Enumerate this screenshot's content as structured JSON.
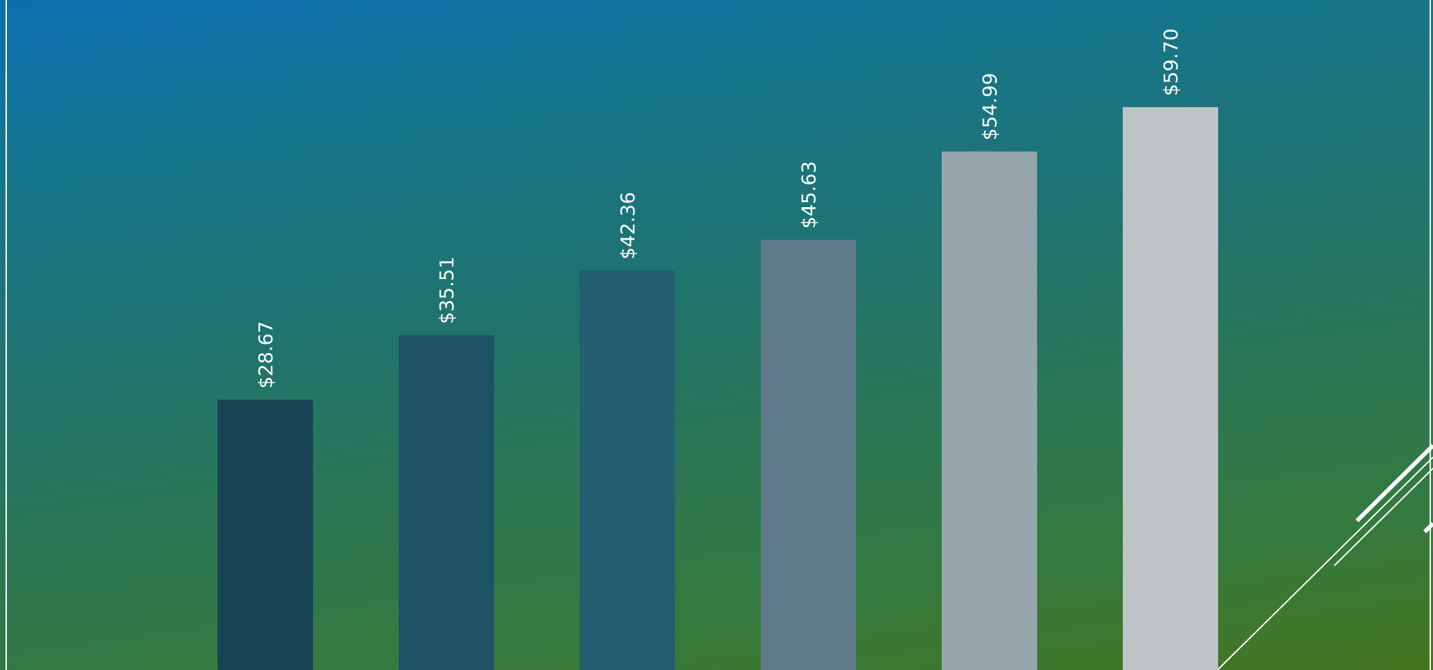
{
  "chart_data": {
    "type": "bar",
    "title": "",
    "xlabel": "",
    "ylabel": "",
    "categories": [
      "",
      "",
      "",
      "",
      "",
      ""
    ],
    "values": [
      28.67,
      35.51,
      42.36,
      45.63,
      54.99,
      59.7
    ],
    "labels": [
      "$28.67",
      "$35.51",
      "$42.36",
      "$45.63",
      "$54.99",
      "$59.70"
    ],
    "colors": [
      "#184354",
      "#1d5164",
      "#235d70",
      "#5f7b89",
      "#96a6ac",
      "#bec4c6"
    ],
    "ylim": [
      0,
      69
    ],
    "grid": false,
    "legend": "none"
  }
}
